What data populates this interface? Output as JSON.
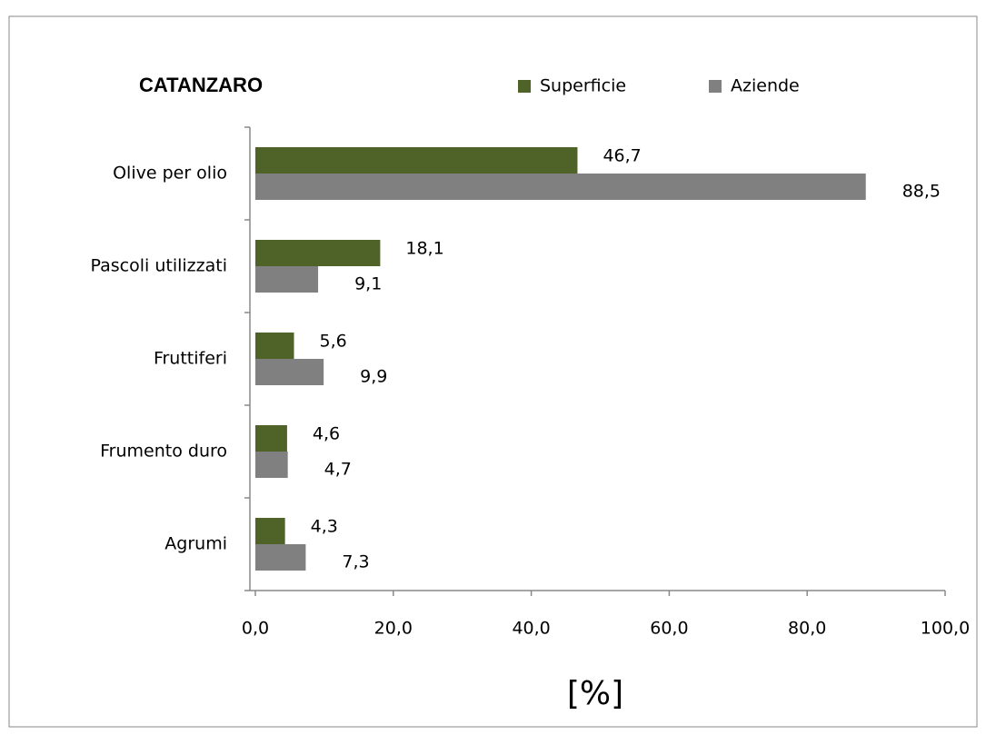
{
  "chart_data": {
    "type": "hbar",
    "title": "CATANZARO",
    "x_label": "[%]",
    "categories": [
      "Olive per olio",
      "Pascoli utilizzati",
      "Fruttiferi",
      "Frumento duro",
      "Agrumi"
    ],
    "series": [
      {
        "name": "Superficie",
        "color": "#4f6228",
        "values": [
          46.7,
          18.1,
          5.6,
          4.6,
          4.3
        ],
        "value_labels": [
          "46,7",
          "18,1",
          "5,6",
          "4,6",
          "4,3"
        ]
      },
      {
        "name": "Aziende",
        "color": "#808080",
        "values": [
          88.5,
          9.1,
          9.9,
          4.7,
          7.3
        ],
        "value_labels": [
          "88,5",
          "9,1",
          "9,9",
          "4,7",
          "7,3"
        ]
      }
    ],
    "xlim": [
      0,
      100
    ],
    "xticks": [
      {
        "value": 0,
        "label": "0,0"
      },
      {
        "value": 20,
        "label": "20,0"
      },
      {
        "value": 40,
        "label": "40,0"
      },
      {
        "value": 60,
        "label": "60,0"
      },
      {
        "value": 80,
        "label": "80,0"
      },
      {
        "value": 100,
        "label": "100,0"
      }
    ],
    "legend": "top"
  }
}
